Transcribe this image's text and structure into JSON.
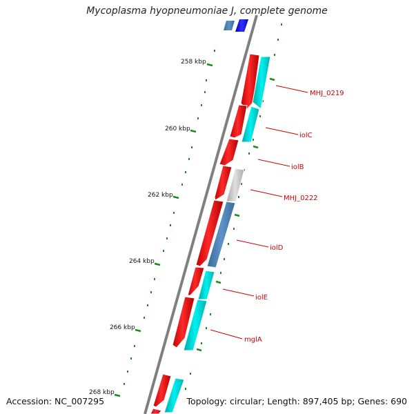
{
  "title": "Mycoplasma hyopneumoniae J, complete genome",
  "footer": {
    "accession": "Accession: NC_007295",
    "topology": "Topology: circular; Length: 897,405 bp; Genes: 690"
  },
  "colors": {
    "backbone": "#7f7f7f",
    "forward_gene": "#ff0000",
    "reverse_gene_cyan": "#00e5e5",
    "reverse_gene_steel": "#4f83b8",
    "reverse_gene_gray": "#c8c8c8",
    "reverse_gene_blue": "#1a1aff",
    "tick": "#1a8a1a",
    "label": "#cc0000"
  },
  "axis_labels": [
    {
      "text": "258 kbp"
    },
    {
      "text": "260 kbp"
    },
    {
      "text": "262 kbp"
    },
    {
      "text": "264 kbp"
    },
    {
      "text": "266 kbp"
    },
    {
      "text": "268 kbp"
    }
  ],
  "gene_labels": [
    {
      "text": "MHJ_0219"
    },
    {
      "text": "iolC"
    },
    {
      "text": "iolB"
    },
    {
      "text": "MHJ_0222"
    },
    {
      "text": "iolD"
    },
    {
      "text": "iolE"
    },
    {
      "text": "mglA"
    }
  ]
}
